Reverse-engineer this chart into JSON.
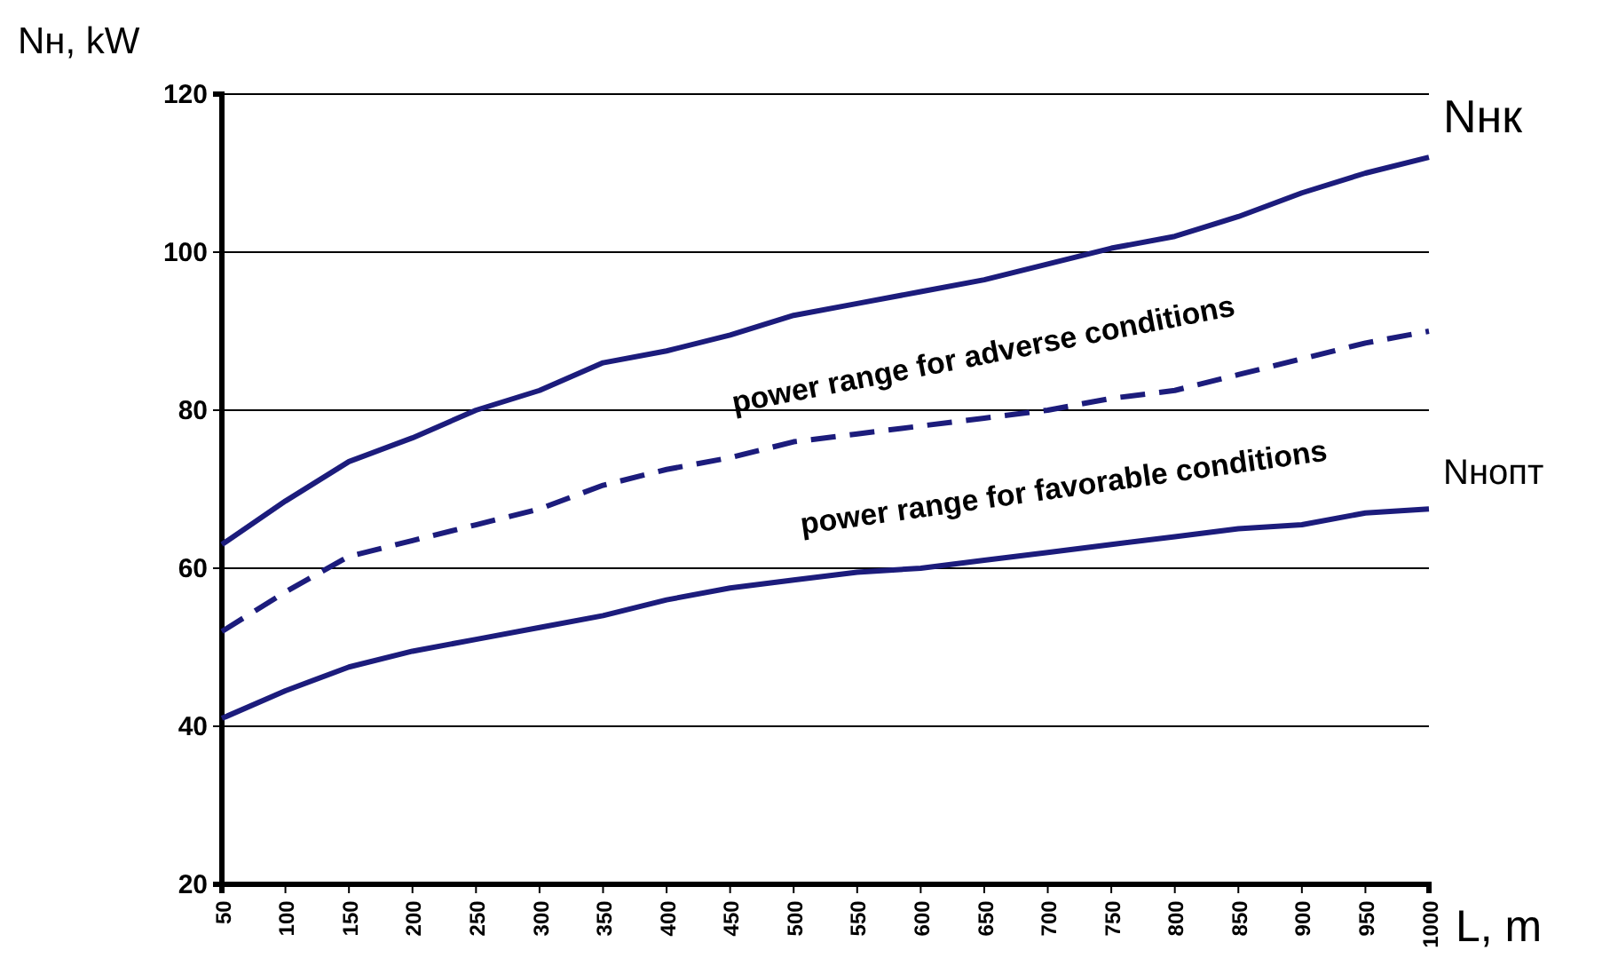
{
  "chart_data": {
    "type": "line",
    "xlabel": "L, m",
    "ylabel": "Nн, kW",
    "x": [
      50,
      100,
      150,
      200,
      250,
      300,
      350,
      400,
      450,
      500,
      550,
      600,
      650,
      700,
      750,
      800,
      850,
      900,
      950,
      1000
    ],
    "xlim": [
      50,
      1000
    ],
    "xticks": [
      50,
      100,
      150,
      200,
      250,
      300,
      350,
      400,
      450,
      500,
      550,
      600,
      650,
      700,
      750,
      800,
      850,
      900,
      950,
      1000
    ],
    "ylim": [
      20,
      120
    ],
    "yticks": [
      20,
      40,
      60,
      80,
      100,
      120
    ],
    "grid": "y",
    "marker": "none",
    "series": [
      {
        "name": "Nнк",
        "color": "#1c1c7c",
        "line_style": "solid",
        "values": [
          63,
          68.5,
          73.5,
          76.5,
          80,
          82.5,
          86,
          87.5,
          89.5,
          92,
          93.5,
          95,
          96.5,
          98.5,
          100.5,
          102,
          104.5,
          107.5,
          110,
          112
        ]
      },
      {
        "color": "#1c1c7c",
        "line_style": "dashed",
        "values": [
          52,
          57,
          61.5,
          63.5,
          65.5,
          67.5,
          70.5,
          72.5,
          74,
          76,
          77,
          78,
          79,
          80,
          81.5,
          82.5,
          84.5,
          86.5,
          88.5,
          90
        ]
      },
      {
        "name": "Nнопт",
        "color": "#1c1c7c",
        "line_style": "solid",
        "values": [
          41,
          44.5,
          47.5,
          49.5,
          51,
          52.5,
          54,
          56,
          57.5,
          58.5,
          59.5,
          60,
          61,
          62,
          63,
          64,
          65,
          65.5,
          67,
          67.5
        ]
      }
    ],
    "annotations": [
      "power range for adverse conditions",
      "power range for favorable conditions"
    ]
  }
}
